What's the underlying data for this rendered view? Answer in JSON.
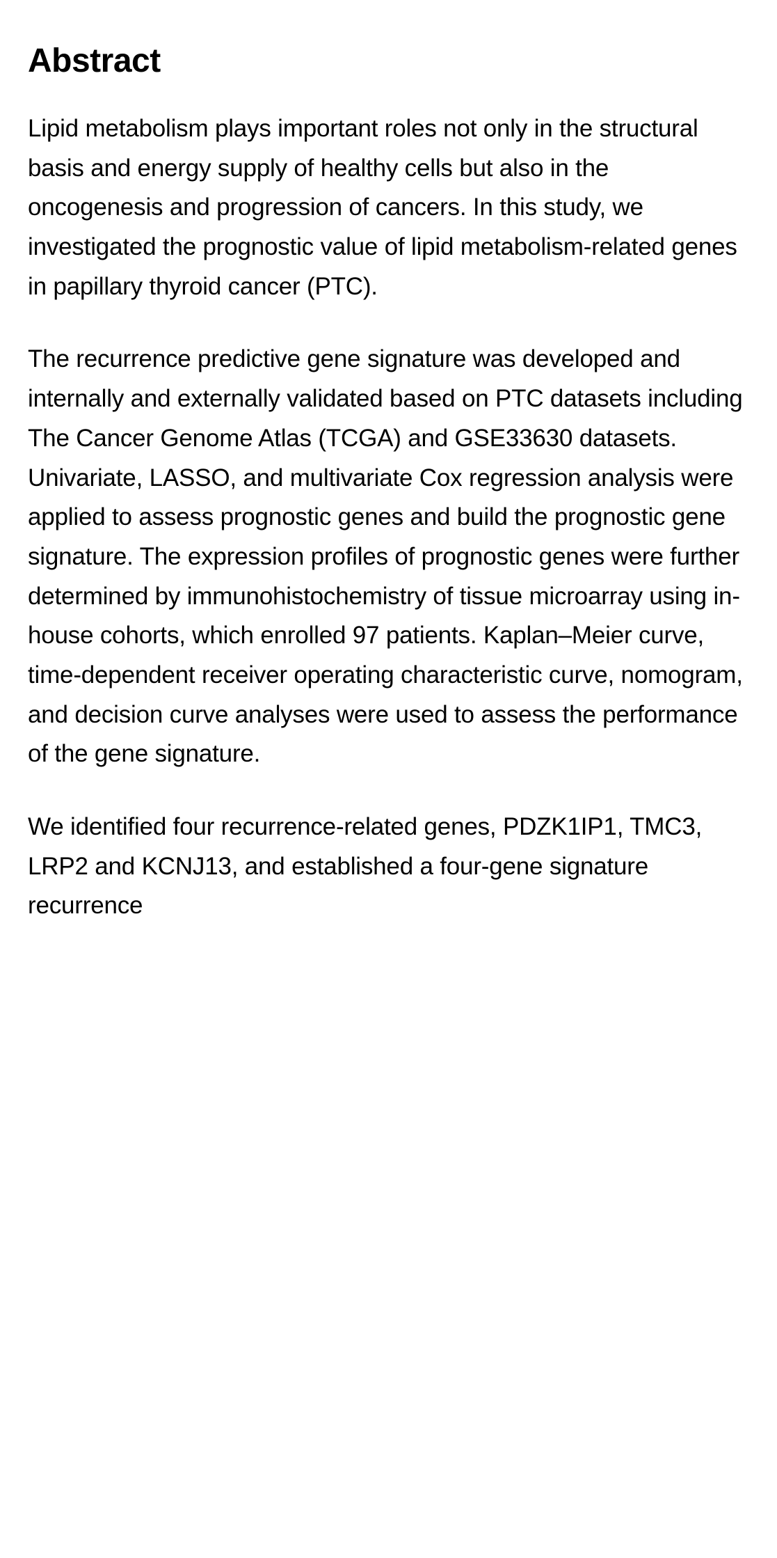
{
  "section": {
    "heading": "Abstract",
    "paragraphs": [
      "Lipid metabolism plays important roles not only in the structural basis and energy supply of healthy cells but also in the oncogenesis and progression of cancers. In this study, we investigated the prognostic value of lipid metabolism-related genes in papillary thyroid cancer (PTC).",
      "The recurrence predictive gene signature was developed and internally and externally validated based on PTC datasets including The Cancer Genome Atlas (TCGA) and GSE33630 datasets. Univariate, LASSO, and multivariate Cox regression analysis were applied to assess prognostic genes and build the prognostic gene signature. The expression profiles of prognostic genes were further determined by immunohistochemistry of tissue microarray using in-house cohorts, which enrolled 97 patients. Kaplan–Meier curve, time-dependent receiver operating characteristic curve, nomogram, and decision curve analyses were used to assess the performance of the gene signature.",
      "We identified four recurrence-related genes, PDZK1IP1, TMC3, LRP2 and KCNJ13, and established a four-gene signature recurrence"
    ]
  }
}
